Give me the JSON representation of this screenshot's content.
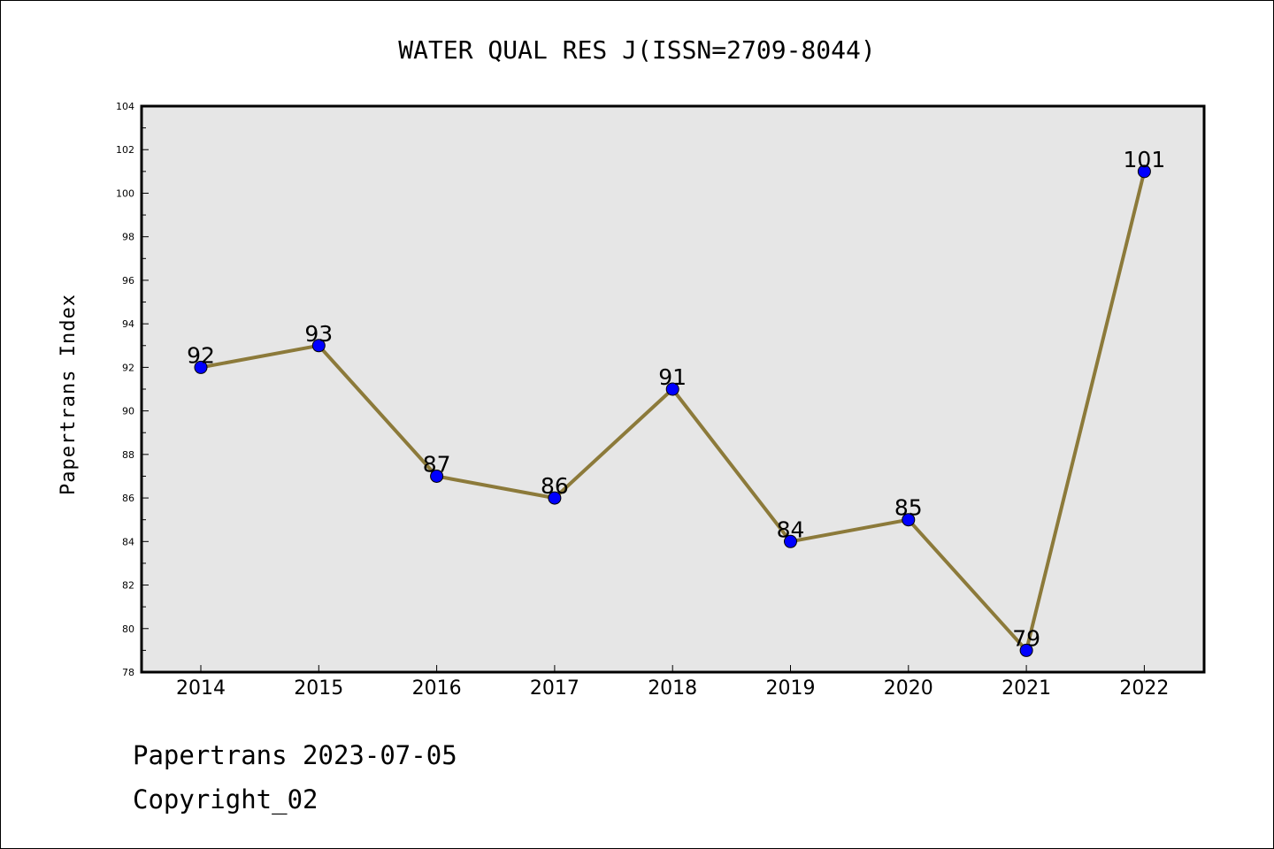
{
  "chart_data": {
    "type": "line",
    "title": "WATER QUAL RES J(ISSN=2709-8044)",
    "xlabel": "",
    "ylabel": "Papertrans Index",
    "categories": [
      "2014",
      "2015",
      "2016",
      "2017",
      "2018",
      "2019",
      "2020",
      "2021",
      "2022"
    ],
    "series": [
      {
        "values": [
          92,
          93,
          87,
          86,
          91,
          84,
          85,
          79,
          101
        ]
      }
    ],
    "ylim": [
      78,
      104
    ],
    "yticks": [
      78,
      80,
      82,
      84,
      86,
      88,
      90,
      92,
      94,
      96,
      98,
      100,
      102,
      104
    ],
    "grid": false,
    "colors": {
      "line": "#8c7a3a",
      "marker": "#0000ff",
      "plot_background": "#e6e6e6"
    }
  },
  "footer": {
    "line1": "Papertrans 2023-07-05",
    "line2": "Copyright_02"
  }
}
